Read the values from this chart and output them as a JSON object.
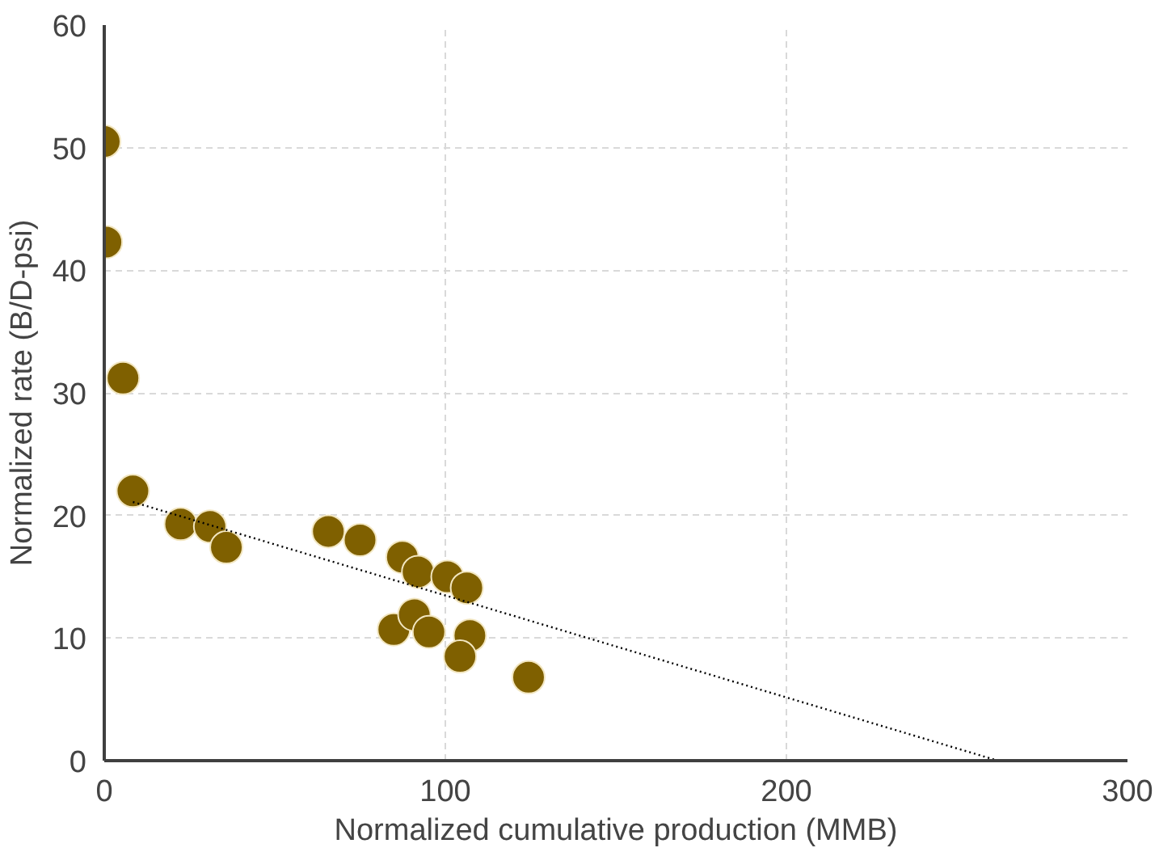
{
  "chart_data": {
    "type": "scatter",
    "xlabel": "Normalized cumulative production (MMB)",
    "ylabel": "Normalized rate (B/D-psi)",
    "xlim": [
      0,
      300
    ],
    "xticks": [
      0,
      100,
      200,
      300
    ],
    "ylim": [
      0,
      60
    ],
    "yticks": [
      0,
      10,
      20,
      30,
      40,
      50,
      60
    ],
    "grid": true,
    "marker": "circle",
    "series": [
      {
        "color": "#7f6000",
        "x": [
          0,
          0.5,
          5.5,
          8.4,
          22.4,
          31,
          35.8,
          65.7,
          75,
          87.4,
          92,
          100.6,
          106.3,
          84.9,
          90.9,
          95.2,
          107.2,
          104.3,
          124.4
        ],
        "values": [
          50.5,
          42.3,
          31.2,
          22.0,
          19.3,
          19.1,
          17.4,
          18.7,
          18.0,
          16.6,
          15.4,
          15.0,
          14.1,
          10.7,
          11.9,
          10.5,
          10.2,
          8.5,
          6.8
        ]
      },
      {
        "type": "line",
        "color": "#000000",
        "line_style": "dotted",
        "marker": "none",
        "x": [
          8.4,
          262
        ],
        "values": [
          21.1,
          0
        ]
      }
    ]
  }
}
